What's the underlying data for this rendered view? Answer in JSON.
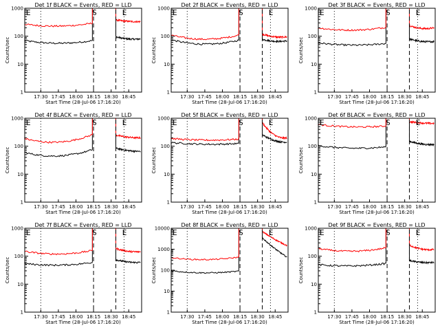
{
  "colors": {
    "events": "#000000",
    "lld": "#ff0000",
    "axes": "#000000",
    "background": "#ffffff"
  },
  "chart_data": [
    {
      "type": "line",
      "title": "Det 1f BLACK = Events, RED = LLD",
      "xlabel": "Start Time (28-Jul-06 17:16:20)",
      "ylabel": "Counts/sec",
      "y_scale": "log",
      "ylim": [
        1,
        1000
      ],
      "x_ticks": [
        "17:30",
        "17:45",
        "18:00",
        "18:15",
        "18:30",
        "18:45"
      ],
      "y_ticks": [
        "1",
        "10",
        "100",
        "1000"
      ],
      "markers": [
        "E",
        "S",
        "E"
      ],
      "series": [
        {
          "name": "Events",
          "color": "#000000",
          "segments": [
            {
              "from": "17:16",
              "to": "18:14",
              "start": 70,
              "mid": 56,
              "end": 70
            },
            {
              "from": "18:34",
              "to": "18:55",
              "start": 95,
              "mid": 80,
              "end": 80
            }
          ]
        },
        {
          "name": "LLD",
          "color": "#ff0000",
          "segments": [
            {
              "from": "17:16",
              "to": "18:14",
              "start": 270,
              "mid": 230,
              "end": 290
            },
            {
              "from": "18:34",
              "to": "18:55",
              "start": 380,
              "mid": 340,
              "end": 330
            }
          ]
        }
      ]
    },
    {
      "type": "line",
      "title": "Det 2f BLACK = Events, RED = LLD",
      "xlabel": "Start Time (28-Jul-06 17:16:20)",
      "ylabel": "Counts/sec",
      "y_scale": "log",
      "ylim": [
        1,
        1000
      ],
      "x_ticks": [
        "17:30",
        "17:45",
        "18:00",
        "18:15",
        "18:30",
        "18:45"
      ],
      "y_ticks": [
        "1",
        "10",
        "100",
        "1000"
      ],
      "markers": [
        "E",
        "S",
        "E"
      ],
      "series": [
        {
          "name": "Events",
          "color": "#000000",
          "segments": [
            {
              "from": "17:16",
              "to": "18:14",
              "start": 75,
              "mid": 52,
              "end": 72
            },
            {
              "from": "18:34",
              "to": "18:55",
              "start": 78,
              "mid": 66,
              "end": 68
            }
          ]
        },
        {
          "name": "LLD",
          "color": "#ff0000",
          "segments": [
            {
              "from": "17:16",
              "to": "18:14",
              "start": 110,
              "mid": 78,
              "end": 110
            },
            {
              "from": "18:34",
              "to": "18:55",
              "start": 120,
              "mid": 95,
              "end": 95
            }
          ]
        }
      ]
    },
    {
      "type": "line",
      "title": "Det 3f BLACK = Events, RED = LLD",
      "xlabel": "Start Time (28-Jul-06 17:16:20)",
      "ylabel": "Counts/sec",
      "y_scale": "log",
      "ylim": [
        1,
        1000
      ],
      "x_ticks": [
        "17:30",
        "17:45",
        "18:00",
        "18:15",
        "18:30",
        "18:45"
      ],
      "y_ticks": [
        "1",
        "10",
        "100",
        "1000"
      ],
      "markers": [
        "E",
        "S",
        "E"
      ],
      "series": [
        {
          "name": "Events",
          "color": "#000000",
          "segments": [
            {
              "from": "17:16",
              "to": "18:14",
              "start": 58,
              "mid": 48,
              "end": 55
            },
            {
              "from": "18:34",
              "to": "18:55",
              "start": 80,
              "mid": 65,
              "end": 65
            }
          ]
        },
        {
          "name": "LLD",
          "color": "#ff0000",
          "segments": [
            {
              "from": "17:16",
              "to": "18:14",
              "start": 200,
              "mid": 165,
              "end": 210
            },
            {
              "from": "18:34",
              "to": "18:55",
              "start": 240,
              "mid": 190,
              "end": 200
            }
          ]
        }
      ]
    },
    {
      "type": "line",
      "title": "Det 4f BLACK = Events, RED = LLD",
      "xlabel": "Start Time (28-Jul-06 17:16:20)",
      "ylabel": "Counts/sec",
      "y_scale": "log",
      "ylim": [
        1,
        1000
      ],
      "x_ticks": [
        "17:30",
        "17:45",
        "18:00",
        "18:15",
        "18:30",
        "18:45"
      ],
      "y_ticks": [
        "1",
        "10",
        "100",
        "1000"
      ],
      "markers": [
        "E",
        "S",
        "E"
      ],
      "series": [
        {
          "name": "Events",
          "color": "#000000",
          "segments": [
            {
              "from": "17:16",
              "to": "18:14",
              "start": 60,
              "mid": 45,
              "end": 75
            },
            {
              "from": "18:34",
              "to": "18:55",
              "start": 85,
              "mid": 70,
              "end": 65
            }
          ]
        },
        {
          "name": "LLD",
          "color": "#ff0000",
          "segments": [
            {
              "from": "17:16",
              "to": "18:14",
              "start": 190,
              "mid": 140,
              "end": 260
            },
            {
              "from": "18:34",
              "to": "18:55",
              "start": 250,
              "mid": 210,
              "end": 200
            }
          ]
        }
      ]
    },
    {
      "type": "line",
      "title": "Det 5f BLACK = Events, RED = LLD",
      "xlabel": "Start Time (28-Jul-06 17:16:20)",
      "ylabel": "Counts/sec",
      "y_scale": "log",
      "ylim": [
        1,
        1000
      ],
      "x_ticks": [
        "17:30",
        "17:45",
        "18:00",
        "18:15",
        "18:30",
        "18:45"
      ],
      "y_ticks": [
        "1",
        "10",
        "100",
        "1000"
      ],
      "markers": [
        "E",
        "S",
        "E"
      ],
      "series": [
        {
          "name": "Events",
          "color": "#000000",
          "segments": [
            {
              "from": "17:16",
              "to": "18:14",
              "start": 135,
              "mid": 118,
              "end": 125
            },
            {
              "from": "18:34",
              "to": "18:55",
              "start": 260,
              "mid": 160,
              "end": 140
            }
          ]
        },
        {
          "name": "LLD",
          "color": "#ff0000",
          "segments": [
            {
              "from": "17:16",
              "to": "18:14",
              "start": 190,
              "mid": 165,
              "end": 180
            },
            {
              "from": "18:34",
              "to": "18:55",
              "start": 700,
              "mid": 250,
              "end": 200
            }
          ]
        }
      ]
    },
    {
      "type": "line",
      "title": "Det 6f BLACK = Events, RED = LLD",
      "xlabel": "Start Time (28-Jul-06 17:16:20)",
      "ylabel": "Counts/sec",
      "y_scale": "log",
      "ylim": [
        1,
        1000
      ],
      "x_ticks": [
        "17:30",
        "17:45",
        "18:00",
        "18:15",
        "18:30",
        "18:45"
      ],
      "y_ticks": [
        "1",
        "10",
        "100",
        "1000"
      ],
      "markers": [
        "E",
        "S",
        "E"
      ],
      "series": [
        {
          "name": "Events",
          "color": "#000000",
          "segments": [
            {
              "from": "17:16",
              "to": "18:14",
              "start": 105,
              "mid": 85,
              "end": 95
            },
            {
              "from": "18:34",
              "to": "18:55",
              "start": 150,
              "mid": 120,
              "end": 115
            }
          ]
        },
        {
          "name": "LLD",
          "color": "#ff0000",
          "segments": [
            {
              "from": "17:16",
              "to": "18:14",
              "start": 600,
              "mid": 490,
              "end": 530
            },
            {
              "from": "18:34",
              "to": "18:55",
              "start": 750,
              "mid": 680,
              "end": 650
            }
          ]
        }
      ]
    },
    {
      "type": "line",
      "title": "Det 7f BLACK = Events, RED = LLD",
      "xlabel": "Start Time (28-Jul-06 17:16:20)",
      "ylabel": "Counts/sec",
      "y_scale": "log",
      "ylim": [
        1,
        1000
      ],
      "x_ticks": [
        "17:30",
        "17:45",
        "18:00",
        "18:15",
        "18:30",
        "18:45"
      ],
      "y_ticks": [
        "1",
        "10",
        "100",
        "1000"
      ],
      "markers": [
        "E",
        "S",
        "E"
      ],
      "series": [
        {
          "name": "Events",
          "color": "#000000",
          "segments": [
            {
              "from": "17:16",
              "to": "18:14",
              "start": 55,
              "mid": 48,
              "end": 60
            },
            {
              "from": "18:34",
              "to": "18:55",
              "start": 75,
              "mid": 62,
              "end": 60
            }
          ]
        },
        {
          "name": "LLD",
          "color": "#ff0000",
          "segments": [
            {
              "from": "17:16",
              "to": "18:14",
              "start": 150,
              "mid": 120,
              "end": 160
            },
            {
              "from": "18:34",
              "to": "18:55",
              "start": 190,
              "mid": 150,
              "end": 145
            }
          ]
        }
      ]
    },
    {
      "type": "line",
      "title": "Det 8f BLACK = Events, RED = LLD",
      "xlabel": "Start Time (28-Jul-06 17:16:20)",
      "ylabel": "Counts/sec",
      "y_scale": "log",
      "ylim": [
        1,
        10000
      ],
      "x_ticks": [
        "17:30",
        "17:45",
        "18:00",
        "18:15",
        "18:30",
        "18:45"
      ],
      "y_ticks": [
        "1",
        "10",
        "100",
        "1000",
        "10000"
      ],
      "markers": [
        "E",
        "S",
        "E"
      ],
      "series": [
        {
          "name": "Events",
          "color": "#000000",
          "segments": [
            {
              "from": "17:16",
              "to": "18:14",
              "start": 95,
              "mid": 75,
              "end": 90
            },
            {
              "from": "18:34",
              "to": "18:55",
              "start": 3500,
              "mid": 1100,
              "end": 420
            }
          ]
        },
        {
          "name": "LLD",
          "color": "#ff0000",
          "segments": [
            {
              "from": "17:16",
              "to": "18:14",
              "start": 400,
              "mid": 320,
              "end": 420
            },
            {
              "from": "18:34",
              "to": "18:55",
              "start": 7000,
              "mid": 3000,
              "end": 1500
            }
          ]
        }
      ]
    },
    {
      "type": "line",
      "title": "Det 9f BLACK = Events, RED = LLD",
      "xlabel": "Start Time (28-Jul-06 17:16:20)",
      "ylabel": "Counts/sec",
      "y_scale": "log",
      "ylim": [
        1,
        1000
      ],
      "x_ticks": [
        "17:30",
        "17:45",
        "18:00",
        "18:15",
        "18:30",
        "18:45"
      ],
      "y_ticks": [
        "1",
        "10",
        "100",
        "1000"
      ],
      "markers": [
        "E",
        "S",
        "E"
      ],
      "series": [
        {
          "name": "Events",
          "color": "#000000",
          "segments": [
            {
              "from": "17:16",
              "to": "18:14",
              "start": 50,
              "mid": 45,
              "end": 55
            },
            {
              "from": "18:34",
              "to": "18:55",
              "start": 70,
              "mid": 60,
              "end": 60
            }
          ]
        },
        {
          "name": "LLD",
          "color": "#ff0000",
          "segments": [
            {
              "from": "17:16",
              "to": "18:14",
              "start": 190,
              "mid": 150,
              "end": 200
            },
            {
              "from": "18:34",
              "to": "18:55",
              "start": 250,
              "mid": 180,
              "end": 175
            }
          ]
        }
      ]
    }
  ]
}
